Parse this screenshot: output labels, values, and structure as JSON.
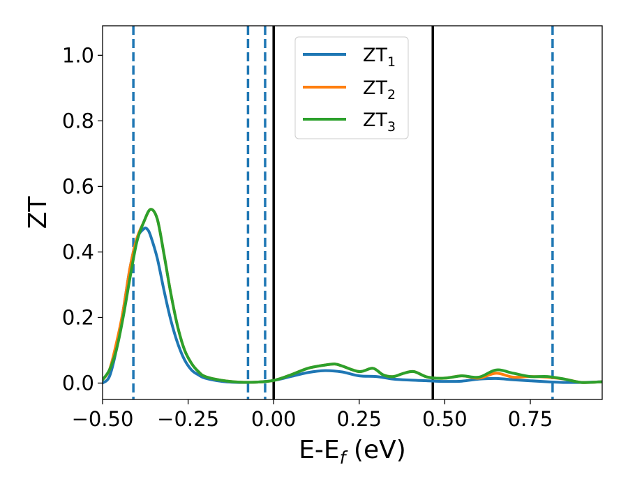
{
  "chart_data": {
    "type": "line",
    "xlabel": "E-E",
    "xlabel_sub": "f",
    "xlabel_unit": " (eV)",
    "ylabel": "ZT",
    "xlim": [
      -0.5,
      0.96
    ],
    "ylim": [
      -0.05,
      1.09
    ],
    "xticks": [
      -0.5,
      -0.25,
      0.0,
      0.25,
      0.5,
      0.75
    ],
    "xtick_labels": [
      "−0.50",
      "−0.25",
      "0.00",
      "0.25",
      "0.50",
      "0.75"
    ],
    "yticks": [
      0.0,
      0.2,
      0.4,
      0.6,
      0.8,
      1.0
    ],
    "ytick_labels": [
      "0.0",
      "0.2",
      "0.4",
      "0.6",
      "0.8",
      "1.0"
    ],
    "grid": false,
    "legend_position": "top-center",
    "vlines_dashed": {
      "color": "#1f77b4",
      "x": [
        -0.41,
        -0.075,
        -0.025,
        0.815
      ]
    },
    "vlines_solid": {
      "color": "#000000",
      "x": [
        0.0,
        0.465
      ]
    },
    "series": [
      {
        "name": "ZT",
        "name_sub": "1",
        "color": "#1f77b4",
        "x": [
          -0.5,
          -0.48,
          -0.46,
          -0.44,
          -0.42,
          -0.4,
          -0.38,
          -0.37,
          -0.36,
          -0.34,
          -0.32,
          -0.3,
          -0.28,
          -0.26,
          -0.24,
          -0.22,
          -0.2,
          -0.15,
          -0.1,
          -0.05,
          0.0,
          0.05,
          0.1,
          0.15,
          0.2,
          0.25,
          0.3,
          0.35,
          0.4,
          0.45,
          0.5,
          0.55,
          0.6,
          0.65,
          0.7,
          0.75,
          0.8,
          0.85,
          0.9,
          0.96
        ],
        "y": [
          0.0,
          0.02,
          0.1,
          0.22,
          0.35,
          0.44,
          0.47,
          0.47,
          0.45,
          0.38,
          0.28,
          0.19,
          0.12,
          0.07,
          0.04,
          0.025,
          0.015,
          0.005,
          0.002,
          0.003,
          0.008,
          0.02,
          0.032,
          0.038,
          0.034,
          0.022,
          0.02,
          0.012,
          0.009,
          0.007,
          0.005,
          0.006,
          0.012,
          0.014,
          0.01,
          0.007,
          0.004,
          0.002,
          0.002,
          0.004
        ]
      },
      {
        "name": "ZT",
        "name_sub": "2",
        "color": "#ff7f0e",
        "x": [
          -0.5,
          -0.48,
          -0.46,
          -0.44,
          -0.42,
          -0.4,
          -0.38,
          -0.36,
          -0.34,
          -0.32,
          -0.3,
          -0.28,
          -0.26,
          -0.24,
          -0.22,
          -0.2,
          -0.15,
          -0.1,
          -0.05,
          0.0,
          0.05,
          0.1,
          0.15,
          0.18,
          0.2,
          0.25,
          0.29,
          0.32,
          0.35,
          0.38,
          0.41,
          0.45,
          0.5,
          0.55,
          0.6,
          0.65,
          0.7,
          0.75,
          0.8,
          0.85,
          0.9,
          0.96
        ],
        "y": [
          0.01,
          0.04,
          0.12,
          0.22,
          0.35,
          0.44,
          0.49,
          0.53,
          0.5,
          0.39,
          0.27,
          0.17,
          0.1,
          0.06,
          0.035,
          0.02,
          0.008,
          0.003,
          0.003,
          0.008,
          0.025,
          0.045,
          0.055,
          0.058,
          0.052,
          0.035,
          0.045,
          0.025,
          0.02,
          0.03,
          0.035,
          0.018,
          0.015,
          0.022,
          0.015,
          0.03,
          0.018,
          0.02,
          0.018,
          0.012,
          0.002,
          0.004
        ]
      },
      {
        "name": "ZT",
        "name_sub": "3",
        "color": "#2ca02c",
        "x": [
          -0.5,
          -0.48,
          -0.46,
          -0.44,
          -0.42,
          -0.4,
          -0.38,
          -0.36,
          -0.34,
          -0.32,
          -0.3,
          -0.28,
          -0.26,
          -0.24,
          -0.22,
          -0.2,
          -0.15,
          -0.1,
          -0.05,
          0.0,
          0.05,
          0.1,
          0.15,
          0.18,
          0.2,
          0.25,
          0.29,
          0.32,
          0.35,
          0.38,
          0.41,
          0.45,
          0.5,
          0.55,
          0.6,
          0.65,
          0.7,
          0.75,
          0.8,
          0.85,
          0.9,
          0.96
        ],
        "y": [
          0.01,
          0.04,
          0.1,
          0.2,
          0.32,
          0.43,
          0.49,
          0.53,
          0.5,
          0.39,
          0.27,
          0.17,
          0.1,
          0.06,
          0.035,
          0.02,
          0.008,
          0.003,
          0.003,
          0.008,
          0.025,
          0.045,
          0.055,
          0.058,
          0.052,
          0.035,
          0.045,
          0.025,
          0.02,
          0.03,
          0.035,
          0.018,
          0.015,
          0.022,
          0.018,
          0.04,
          0.03,
          0.02,
          0.02,
          0.012,
          0.002,
          0.004
        ]
      }
    ]
  }
}
